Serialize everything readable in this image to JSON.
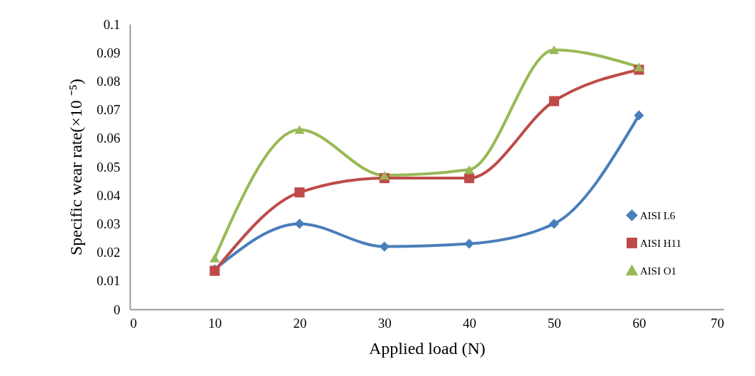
{
  "chart_data": {
    "type": "line",
    "xlabel": "Applied load (N)",
    "ylabel": "Specific wear rate(×10 ⁻⁵)",
    "x": [
      10,
      20,
      30,
      40,
      50,
      60
    ],
    "series": [
      {
        "name": "AISI L6",
        "color": "#4a7ebb",
        "marker": "diamond",
        "values": [
          0.014,
          0.03,
          0.022,
          0.023,
          0.03,
          0.068
        ]
      },
      {
        "name": "AISI H11",
        "color": "#be4b48",
        "marker": "square",
        "values": [
          0.0135,
          0.041,
          0.046,
          0.046,
          0.073,
          0.084
        ]
      },
      {
        "name": "AISI O1",
        "color": "#98b954",
        "marker": "triangle",
        "values": [
          0.018,
          0.063,
          0.047,
          0.049,
          0.091,
          0.085
        ]
      }
    ],
    "xlim": [
      0,
      70
    ],
    "xticks": [
      0,
      10,
      20,
      30,
      40,
      50,
      60,
      70
    ],
    "ylim": [
      0,
      0.1
    ],
    "yticks": [
      0,
      0.01,
      0.02,
      0.03,
      0.04,
      0.05,
      0.06,
      0.07,
      0.08,
      0.09,
      0.1
    ],
    "grid": false,
    "legend": "right",
    "line_style": "solid"
  }
}
